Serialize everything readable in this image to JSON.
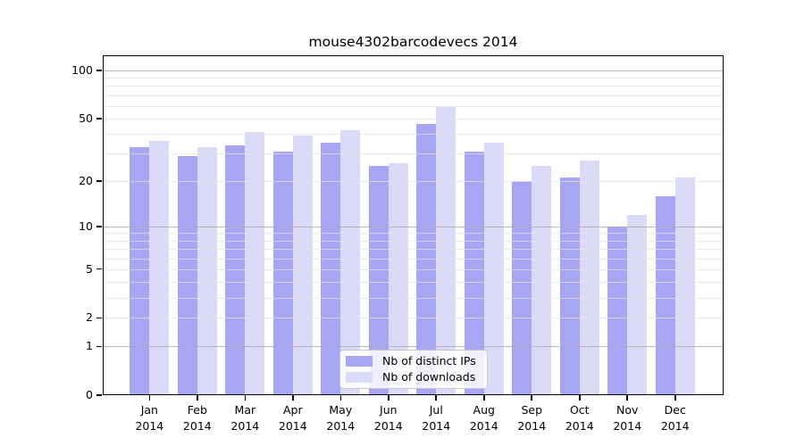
{
  "title": "mouse4302barcodevecs 2014",
  "chart_data": {
    "type": "bar",
    "title": "mouse4302barcodevecs 2014",
    "categories": [
      "Jan",
      "Feb",
      "Mar",
      "Apr",
      "May",
      "Jun",
      "Jul",
      "Aug",
      "Sep",
      "Oct",
      "Nov",
      "Dec"
    ],
    "x_tick_second_line": "2014",
    "series": [
      {
        "name": "Nb of distinct IPs",
        "color": "#a6a6f4",
        "values": [
          33,
          29,
          34,
          31,
          35,
          25,
          46,
          31,
          20,
          21,
          10,
          16
        ]
      },
      {
        "name": "Nb of downloads",
        "color": "#dbdbf9",
        "values": [
          36,
          33,
          41,
          39,
          42,
          26,
          59,
          35,
          25,
          27,
          12,
          21
        ]
      }
    ],
    "xlabel": "",
    "ylabel": "",
    "y_scale": "log1p",
    "y_ticks": [
      0,
      1,
      2,
      5,
      10,
      20,
      50,
      100
    ],
    "y_minor_gridlines": [
      2,
      3,
      4,
      5,
      6,
      7,
      8,
      9,
      20,
      30,
      40,
      50,
      60,
      70,
      80,
      90
    ],
    "y_major_gridlines": [
      1,
      10,
      100
    ],
    "ylim": [
      0,
      125
    ],
    "grid": true,
    "legend_position": "inside-bottom-center"
  }
}
